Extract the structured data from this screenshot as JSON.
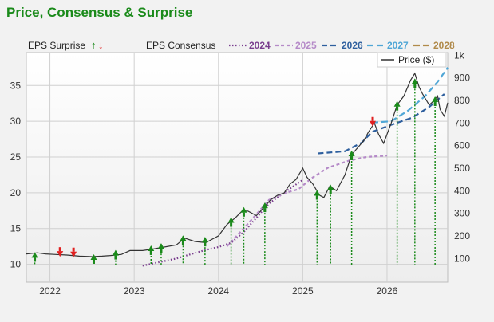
{
  "title": "Price, Consensus & Surprise",
  "legend": {
    "surprise_label": "EPS Surprise",
    "consensus_label": "EPS Consensus",
    "price_label": "Price ($)",
    "up_arrow": "↑",
    "down_arrow": "↓"
  },
  "colors": {
    "title": "#1a8a1a",
    "price": "#333333",
    "c2024": "#7a3e8e",
    "c2025": "#b58ac8",
    "c2026": "#2e5f9e",
    "c2027": "#4fa6d6",
    "c2028": "#b08a4a",
    "up": "#1a8a1a",
    "down": "#e02020"
  },
  "chart_data": {
    "type": "line",
    "x_ticks": [
      "2022",
      "2023",
      "2024",
      "2025",
      "2026"
    ],
    "x_tick_values": [
      2022.0,
      2023.0,
      2024.0,
      2025.0,
      2026.0
    ],
    "xlim": [
      2021.72,
      2026.72
    ],
    "left_axis": {
      "ticks": [
        "10",
        "15",
        "20",
        "25",
        "30",
        "35"
      ],
      "tick_values": [
        10,
        15,
        20,
        25,
        30,
        35
      ],
      "ylim": [
        7.5,
        39.6
      ]
    },
    "right_axis": {
      "ticks": [
        "100",
        "200",
        "300",
        "400",
        "500",
        "600",
        "700",
        "800",
        "900",
        "1k"
      ],
      "tick_values": [
        100,
        200,
        300,
        400,
        500,
        600,
        700,
        800,
        900,
        1000
      ],
      "ylim": [
        -5,
        1012
      ]
    },
    "grid": true,
    "legend_placement": "top",
    "series": [
      {
        "name": "Price ($)",
        "axis": "right",
        "color_key": "price",
        "x": [
          2021.72,
          2021.85,
          2021.95,
          2022.05,
          2022.2,
          2022.35,
          2022.5,
          2022.62,
          2022.72,
          2022.85,
          2022.95,
          2023.1,
          2023.2,
          2023.35,
          2023.5,
          2023.6,
          2023.72,
          2023.85,
          2024.0,
          2024.1,
          2024.2,
          2024.28,
          2024.35,
          2024.45,
          2024.55,
          2024.62,
          2024.7,
          2024.78,
          2024.85,
          2024.92,
          2025.0,
          2025.05,
          2025.12,
          2025.2,
          2025.25,
          2025.32,
          2025.4,
          2025.5,
          2025.58,
          2025.65,
          2025.72,
          2025.78,
          2025.85,
          2025.9,
          2025.96,
          2026.05,
          2026.12,
          2026.2,
          2026.28,
          2026.33,
          2026.38,
          2026.42,
          2026.5,
          2026.56,
          2026.6,
          2026.63,
          2026.68,
          2026.72
        ],
        "y": [
          120,
          125,
          120,
          118,
          115,
          110,
          108,
          110,
          113,
          118,
          135,
          135,
          140,
          150,
          160,
          190,
          175,
          170,
          200,
          250,
          280,
          310,
          310,
          290,
          330,
          360,
          380,
          390,
          430,
          450,
          500,
          460,
          430,
          380,
          370,
          420,
          400,
          470,
          560,
          590,
          620,
          660,
          700,
          650,
          610,
          700,
          780,
          820,
          890,
          920,
          860,
          830,
          780,
          800,
          820,
          760,
          730,
          790
        ]
      },
      {
        "name": "2024",
        "axis": "left",
        "color_key": "c2024",
        "x": [
          2023.1,
          2023.3,
          2023.5,
          2023.7,
          2023.85,
          2024.0,
          2024.15,
          2024.3,
          2024.45,
          2024.6,
          2024.8,
          2025.0
        ],
        "y": [
          9.8,
          10.3,
          10.8,
          11.5,
          12.0,
          12.4,
          13.0,
          14.5,
          16.5,
          18.5,
          20.2,
          21.8
        ]
      },
      {
        "name": "2025",
        "axis": "left",
        "color_key": "c2025",
        "x": [
          2024.1,
          2024.3,
          2024.45,
          2024.6,
          2024.8,
          2024.95,
          2025.1,
          2025.3,
          2025.55,
          2025.75,
          2026.0
        ],
        "y": [
          12.5,
          15.0,
          17.0,
          19.0,
          20.0,
          20.5,
          22.0,
          23.5,
          24.5,
          25.0,
          25.2
        ]
      },
      {
        "name": "2026",
        "axis": "left",
        "color_key": "c2026",
        "x": [
          2025.18,
          2025.5,
          2025.7,
          2025.82,
          2026.05,
          2026.3,
          2026.5,
          2026.68
        ],
        "y": [
          25.5,
          25.8,
          27.0,
          28.5,
          29.5,
          30.5,
          32.0,
          33.8
        ]
      },
      {
        "name": "2027",
        "axis": "left",
        "color_key": "c2027",
        "x": [
          2025.82,
          2026.05,
          2026.25,
          2026.45,
          2026.6,
          2026.72
        ],
        "y": [
          29.8,
          30.0,
          31.5,
          33.5,
          35.5,
          37.5
        ]
      },
      {
        "name": "2028",
        "axis": "left",
        "color_key": "c2028",
        "x": [],
        "y": []
      }
    ],
    "surprises": [
      {
        "x": 2021.82,
        "dir": "up",
        "price": 110
      },
      {
        "x": 2022.12,
        "dir": "down",
        "price": 118
      },
      {
        "x": 2022.28,
        "dir": "down",
        "price": 116
      },
      {
        "x": 2022.52,
        "dir": "up",
        "price": 101
      },
      {
        "x": 2022.78,
        "dir": "up",
        "price": 120
      },
      {
        "x": 2023.2,
        "dir": "up",
        "price": 140
      },
      {
        "x": 2023.32,
        "dir": "up",
        "price": 150
      },
      {
        "x": 2023.58,
        "dir": "up",
        "price": 185
      },
      {
        "x": 2023.84,
        "dir": "up",
        "price": 178
      },
      {
        "x": 2024.15,
        "dir": "up",
        "price": 265
      },
      {
        "x": 2024.3,
        "dir": "up",
        "price": 310
      },
      {
        "x": 2024.55,
        "dir": "up",
        "price": 330
      },
      {
        "x": 2025.17,
        "dir": "up",
        "price": 385
      },
      {
        "x": 2025.33,
        "dir": "up",
        "price": 410
      },
      {
        "x": 2025.58,
        "dir": "up",
        "price": 560
      },
      {
        "x": 2025.83,
        "dir": "down",
        "price": 695
      },
      {
        "x": 2026.12,
        "dir": "up",
        "price": 780
      },
      {
        "x": 2026.33,
        "dir": "up",
        "price": 880
      },
      {
        "x": 2026.57,
        "dir": "up",
        "price": 800
      }
    ]
  }
}
